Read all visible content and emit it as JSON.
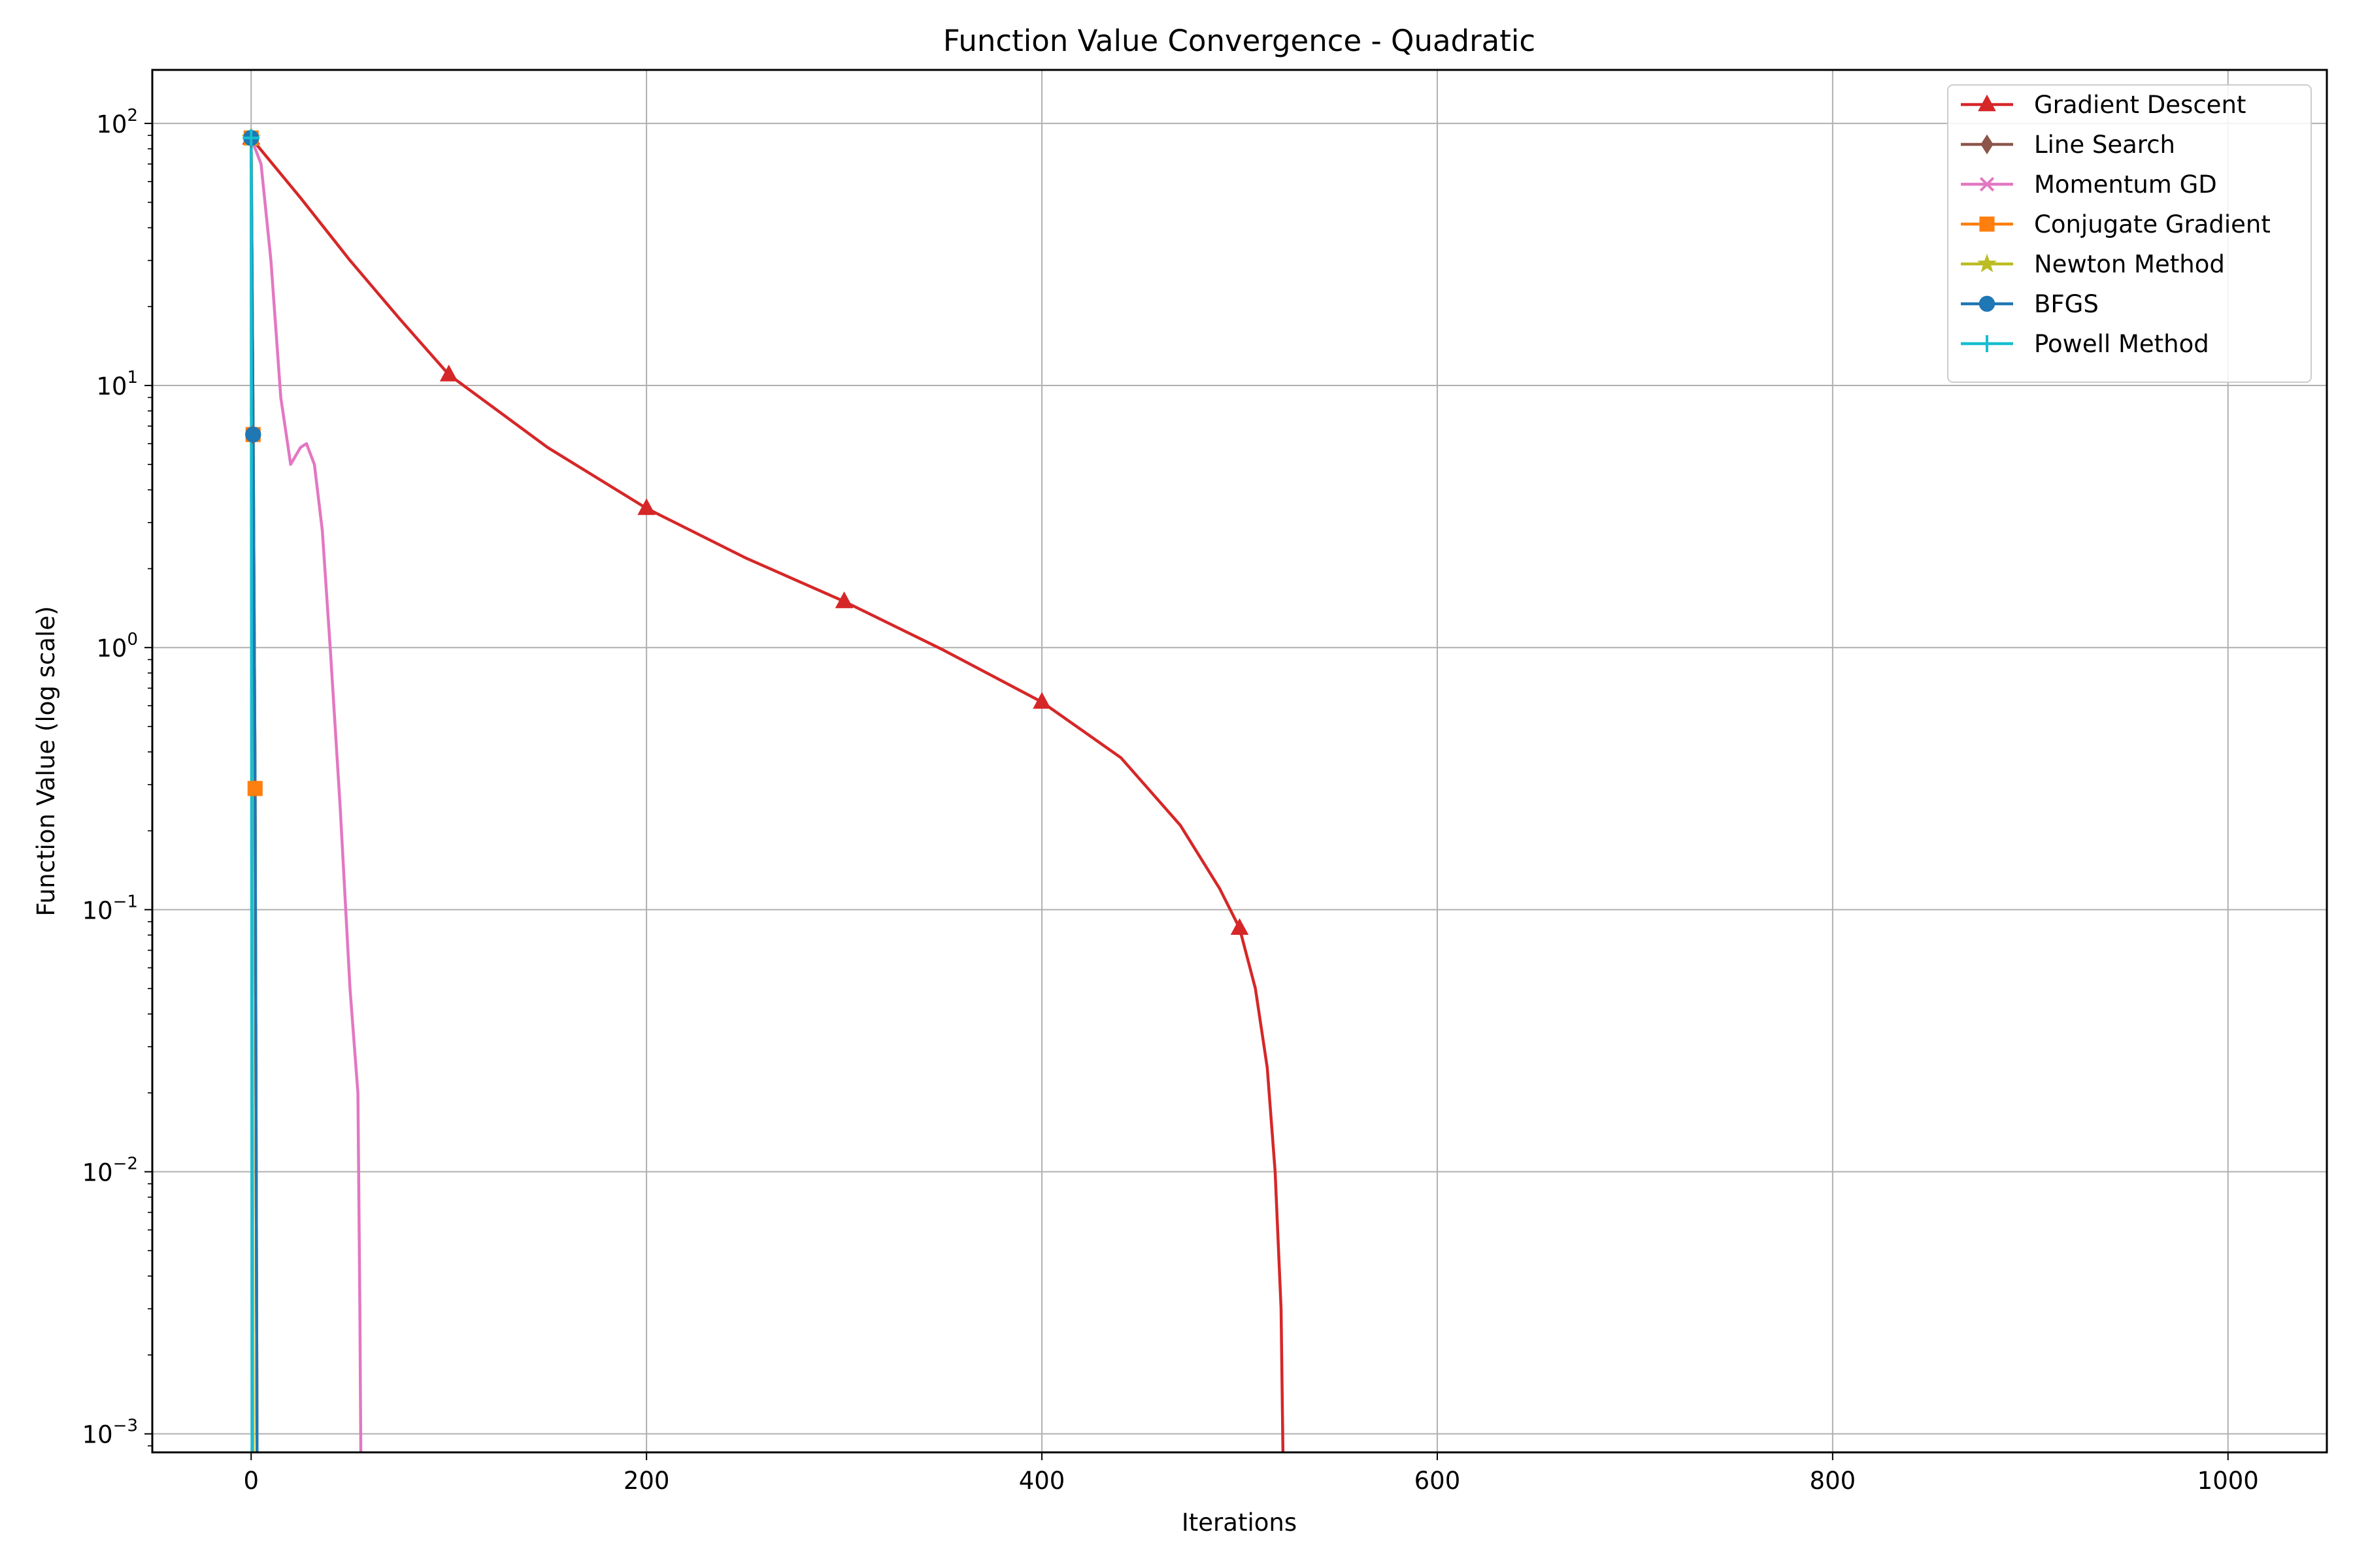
{
  "chart_data": {
    "type": "line",
    "title": "Function Value Convergence - Quadratic",
    "xlabel": "Iterations",
    "ylabel": "Function Value (log scale)",
    "xlim": [
      -50,
      1050
    ],
    "ylim": [
      0.00085,
      160
    ],
    "yscale": "log",
    "grid": true,
    "legend_position": "top-right",
    "x_ticks": [
      {
        "value": 0,
        "label": "0"
      },
      {
        "value": 200,
        "label": "200"
      },
      {
        "value": 400,
        "label": "400"
      },
      {
        "value": 600,
        "label": "600"
      },
      {
        "value": 800,
        "label": "800"
      },
      {
        "value": 1000,
        "label": "1000"
      }
    ],
    "y_ticks": [
      {
        "value": 0.001,
        "base": "10",
        "exp": "−3"
      },
      {
        "value": 0.01,
        "base": "10",
        "exp": "−2"
      },
      {
        "value": 0.1,
        "base": "10",
        "exp": "−1"
      },
      {
        "value": 1,
        "base": "10",
        "exp": "0"
      },
      {
        "value": 10,
        "base": "10",
        "exp": "1"
      },
      {
        "value": 100,
        "base": "10",
        "exp": "2"
      }
    ],
    "series": [
      {
        "name": "Gradient Descent",
        "color": "#d62728",
        "marker": "triangle",
        "x": [
          0,
          25,
          50,
          75,
          100,
          150,
          200,
          250,
          300,
          350,
          400,
          440,
          470,
          490,
          500,
          508,
          514,
          518,
          521,
          522
        ],
        "y": [
          88,
          52,
          30,
          18,
          11,
          5.8,
          3.4,
          2.2,
          1.5,
          0.98,
          0.62,
          0.38,
          0.21,
          0.12,
          0.085,
          0.05,
          0.025,
          0.01,
          0.003,
          0.0008
        ],
        "marker_x": [
          0,
          100,
          200,
          300,
          400,
          500
        ],
        "marker_y": [
          88,
          11,
          3.4,
          1.5,
          0.62,
          0.085
        ]
      },
      {
        "name": "Line Search",
        "color": "#8c564b",
        "marker": "diamond",
        "x": [
          0,
          1,
          2,
          3
        ],
        "y": [
          88,
          6.5,
          0.29,
          0.0008
        ],
        "marker_x": [
          0,
          1,
          2
        ],
        "marker_y": [
          88,
          6.5,
          0.29
        ]
      },
      {
        "name": "Momentum GD",
        "color": "#e377c2",
        "marker": "x",
        "x": [
          0,
          5,
          10,
          15,
          20,
          25,
          28,
          32,
          36,
          40,
          45,
          50,
          54,
          55,
          55.5
        ],
        "y": [
          88,
          70,
          30,
          9,
          5.0,
          5.8,
          6.0,
          5.0,
          2.8,
          1.0,
          0.25,
          0.05,
          0.02,
          0.003,
          0.0008
        ],
        "marker_x": [
          0
        ],
        "marker_y": [
          88
        ]
      },
      {
        "name": "Conjugate Gradient",
        "color": "#ff7f0e",
        "marker": "square",
        "x": [
          0,
          1,
          2,
          3
        ],
        "y": [
          88,
          6.5,
          0.29,
          0.0008
        ],
        "marker_x": [
          0,
          1,
          2
        ],
        "marker_y": [
          88,
          6.5,
          0.29
        ]
      },
      {
        "name": "Newton Method",
        "color": "#bcbd22",
        "marker": "star",
        "x": [
          0,
          1
        ],
        "y": [
          88,
          0.0008
        ],
        "marker_x": [
          0
        ],
        "marker_y": [
          88
        ]
      },
      {
        "name": "BFGS",
        "color": "#1f77b4",
        "marker": "circle",
        "x": [
          0,
          1,
          2,
          3
        ],
        "y": [
          88,
          6.5,
          0.29,
          0.0008
        ],
        "marker_x": [
          0,
          1
        ],
        "marker_y": [
          88,
          6.5
        ]
      },
      {
        "name": "Powell Method",
        "color": "#17becf",
        "marker": "plus",
        "x": [
          0,
          0.5
        ],
        "y": [
          88,
          0.0008
        ],
        "marker_x": [
          0
        ],
        "marker_y": [
          88
        ]
      }
    ]
  }
}
